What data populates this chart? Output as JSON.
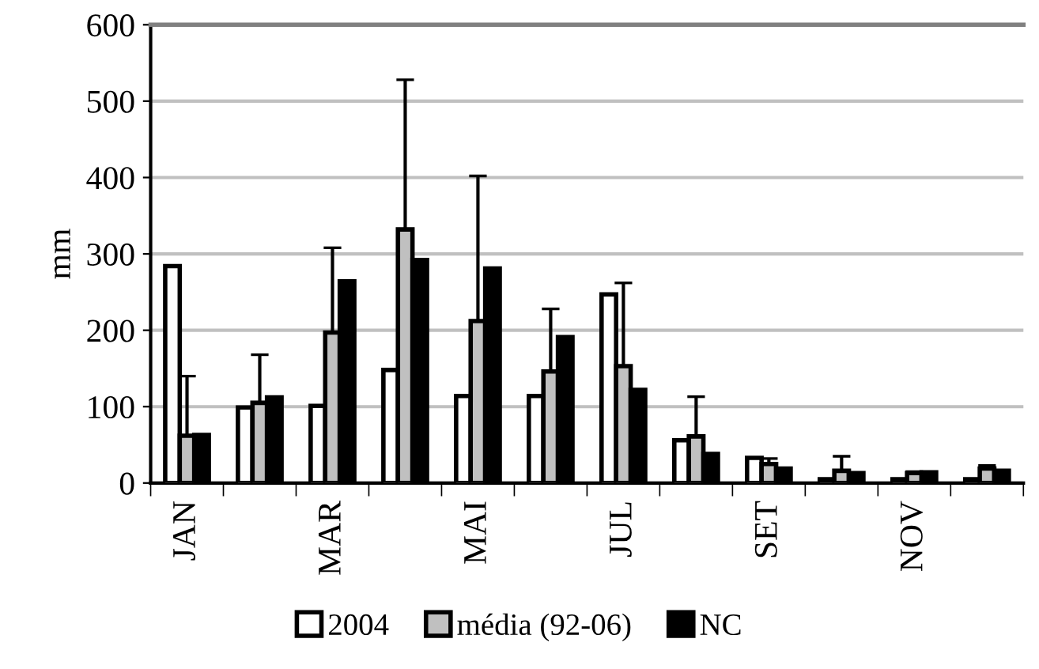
{
  "chart_data": {
    "type": "bar",
    "ylabel": "mm",
    "categories": [
      "JAN",
      null,
      "MAR",
      null,
      "MAI",
      null,
      "JUL",
      null,
      "SET",
      null,
      "NOV",
      null
    ],
    "series": [
      {
        "name": "2004",
        "color": "#ffffff",
        "values": [
          284,
          99,
          101,
          148,
          114,
          114,
          247,
          56,
          33,
          5,
          5,
          5
        ]
      },
      {
        "name": "média (92-06)",
        "color": "#c0c0c0",
        "values": [
          62,
          105,
          197,
          332,
          212,
          146,
          153,
          61,
          25,
          16,
          13,
          19
        ],
        "errors": [
          78,
          63,
          111,
          196,
          190,
          82,
          109,
          52,
          7,
          19,
          2,
          4
        ]
      },
      {
        "name": "NC",
        "color": "#000000",
        "values": [
          63,
          112,
          264,
          292,
          281,
          191,
          122,
          38,
          19,
          13,
          14,
          16
        ]
      }
    ],
    "ylim": [
      0,
      600
    ],
    "yticks": [
      0,
      100,
      200,
      300,
      400,
      500,
      600
    ],
    "grid": "y",
    "legend": "bottom"
  }
}
